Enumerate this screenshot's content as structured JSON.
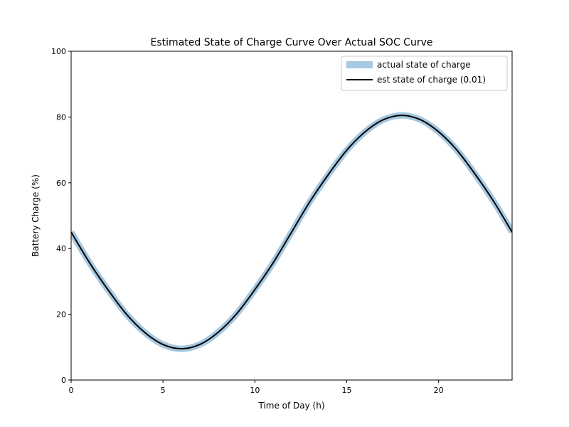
{
  "chart_data": {
    "type": "line",
    "title": "Estimated State of Charge Curve Over Actual SOC Curve",
    "xlabel": "Time of Day (h)",
    "ylabel": "Battery Charge (%)",
    "xlim": [
      0,
      24
    ],
    "ylim": [
      0,
      100
    ],
    "xticks": [
      0,
      5,
      10,
      15,
      20
    ],
    "yticks": [
      0,
      20,
      40,
      60,
      80,
      100
    ],
    "grid": false,
    "legend_position": "top-right",
    "series": [
      {
        "name": "actual state of charge",
        "color": "#a6c8e0",
        "style": "thick band",
        "x": [
          0,
          1,
          2,
          3,
          4,
          5,
          6,
          7,
          8,
          9,
          10,
          11,
          12,
          13,
          14,
          15,
          16,
          17,
          18,
          19,
          20,
          21,
          22,
          23,
          24
        ],
        "y": [
          45,
          35.7,
          27.5,
          20.1,
          14.5,
          10.8,
          9.5,
          10.8,
          14.5,
          20.1,
          27.5,
          35.7,
          45,
          54.3,
          62.5,
          69.9,
          75.5,
          79.2,
          80.5,
          79.2,
          75.5,
          69.9,
          62.5,
          54.3,
          45
        ]
      },
      {
        "name": "est state of charge (0.01)",
        "color": "#000000",
        "style": "solid",
        "x": [
          0,
          1,
          2,
          3,
          4,
          5,
          6,
          7,
          8,
          9,
          10,
          11,
          12,
          13,
          14,
          15,
          16,
          17,
          18,
          19,
          20,
          21,
          22,
          23,
          24
        ],
        "y": [
          45,
          35.7,
          27.5,
          20.1,
          14.5,
          10.8,
          9.5,
          10.8,
          14.5,
          20.1,
          27.5,
          35.7,
          45,
          54.3,
          62.5,
          69.9,
          75.5,
          79.2,
          80.5,
          79.2,
          75.5,
          69.9,
          62.5,
          54.3,
          45
        ]
      }
    ]
  }
}
